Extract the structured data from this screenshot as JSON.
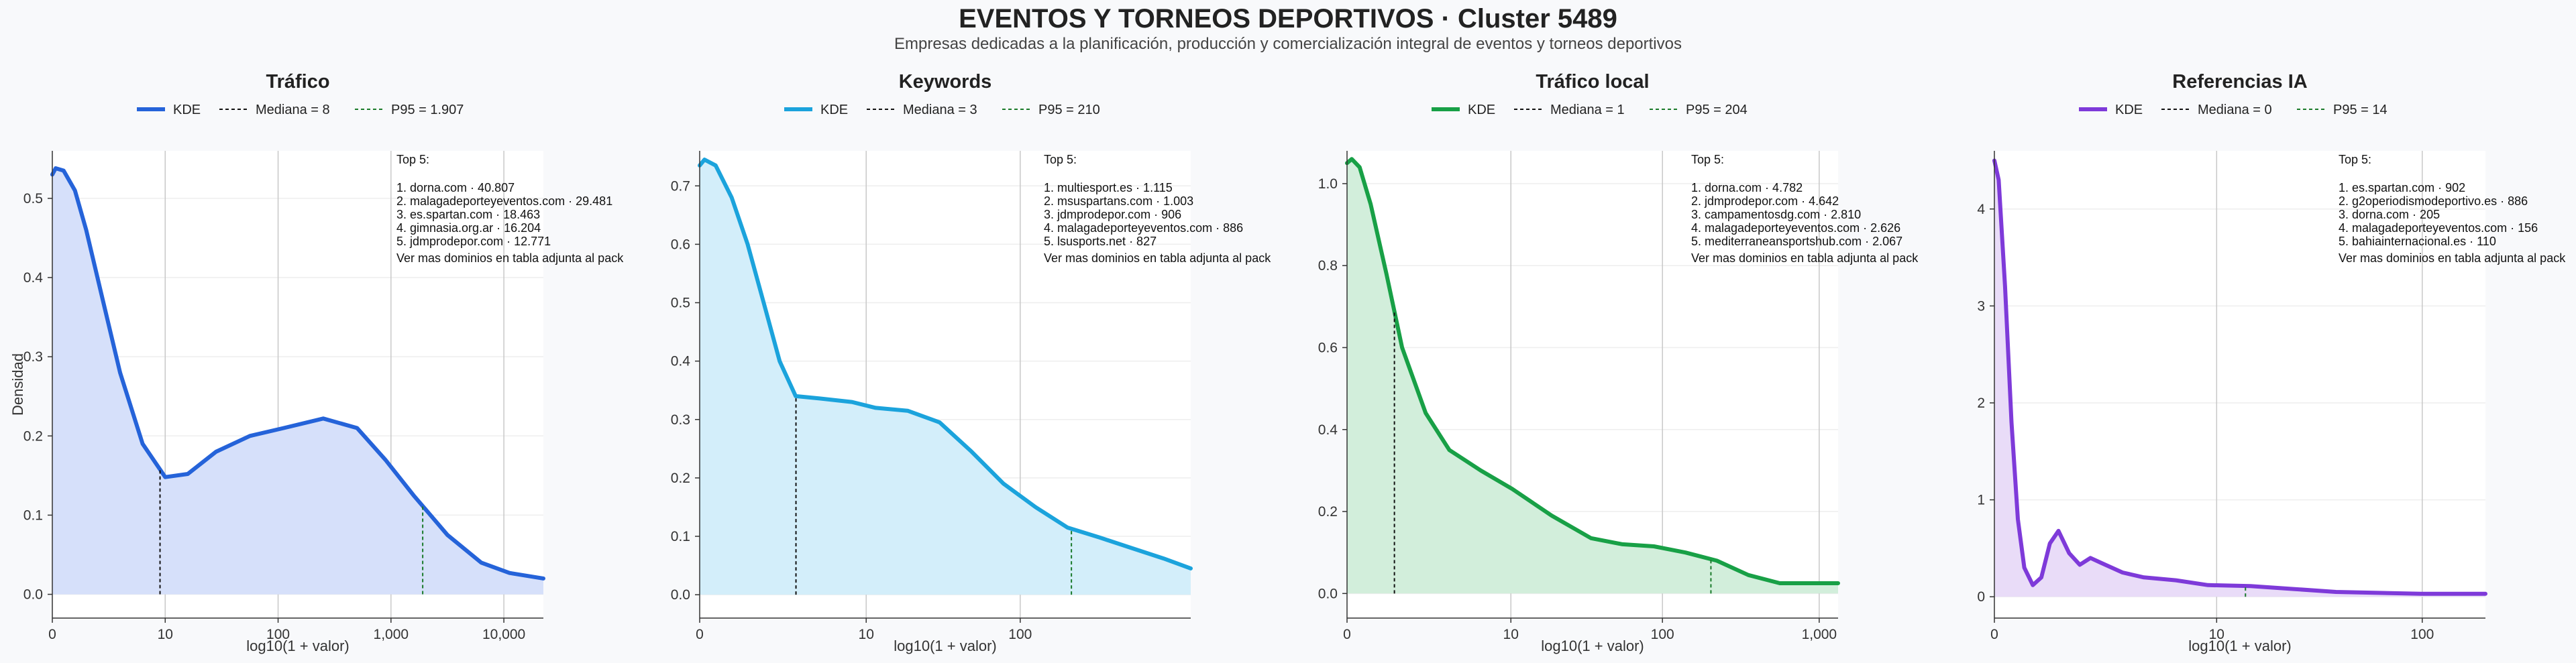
{
  "header": {
    "title": "EVENTOS Y TORNEOS DEPORTIVOS · Cluster 5489",
    "subtitle": "Empresas dedicadas a la planificación, producción y comercialización integral de eventos y torneos deportivos"
  },
  "chart_data": [
    {
      "type": "area",
      "title": "Tráfico",
      "xlabel": "log10(1 + valor)",
      "ylabel": "Densidad",
      "xscale": "log10(1+x)",
      "xlim": [
        0,
        4.35
      ],
      "ylim": [
        -0.03,
        0.56
      ],
      "xticks": [
        0,
        1,
        2,
        3,
        4
      ],
      "xtick_labels": [
        "0",
        "10",
        "100",
        "1,000",
        "10,000"
      ],
      "yticks": [
        0,
        0.1,
        0.2,
        0.3,
        0.4,
        0.5
      ],
      "ytick_labels": [
        "0.0",
        "0.1",
        "0.2",
        "0.3",
        "0.4",
        "0.5"
      ],
      "legend": [
        {
          "label": "KDE",
          "style": "solid"
        },
        {
          "label": "Mediana = 8",
          "style": "dashed"
        },
        {
          "label": "P95 = 1.907",
          "style": "dashed"
        }
      ],
      "color": "#2563d9",
      "fill": "#d6e0fa",
      "p95_color": "#1a7a2a",
      "median_x": 0.954,
      "p95_x": 3.281,
      "series": [
        {
          "x": [
            0,
            0.03,
            0.1,
            0.2,
            0.3,
            0.45,
            0.6,
            0.8,
            1.0,
            1.2,
            1.45,
            1.75,
            2.05,
            2.4,
            2.7,
            2.95,
            3.2,
            3.5,
            3.8,
            4.05,
            4.35
          ],
          "y": [
            0.53,
            0.538,
            0.535,
            0.51,
            0.46,
            0.37,
            0.28,
            0.19,
            0.148,
            0.152,
            0.18,
            0.2,
            0.21,
            0.222,
            0.21,
            0.17,
            0.125,
            0.075,
            0.04,
            0.027,
            0.02
          ]
        }
      ],
      "top5": {
        "heading": "Top 5:",
        "items": [
          "1. dorna.com · 40.807",
          "2. malagadeporteyeventos.com · 29.481",
          "3. es.spartan.com · 18.463",
          "4. gimnasia.org.ar · 16.204",
          "5. jdmprodepor.com · 12.771"
        ],
        "footer": "Ver mas dominios en tabla adjunta al pack"
      }
    },
    {
      "type": "area",
      "title": "Keywords",
      "xlabel": "log10(1 + valor)",
      "ylabel": "",
      "xscale": "log10(1+x)",
      "xlim": [
        0,
        3.07
      ],
      "ylim": [
        -0.04,
        0.76
      ],
      "xticks": [
        0,
        1.041,
        2.004
      ],
      "xtick_labels": [
        "0",
        "10",
        "100"
      ],
      "yticks": [
        0,
        0.1,
        0.2,
        0.3,
        0.4,
        0.5,
        0.6,
        0.7
      ],
      "ytick_labels": [
        "0.0",
        "0.1",
        "0.2",
        "0.3",
        "0.4",
        "0.5",
        "0.6",
        "0.7"
      ],
      "legend": [
        {
          "label": "KDE",
          "style": "solid"
        },
        {
          "label": "Mediana = 3",
          "style": "dashed"
        },
        {
          "label": "P95 = 210",
          "style": "dashed"
        }
      ],
      "color": "#1ba3dc",
      "fill": "#d3eefa",
      "p95_color": "#1a7a2a",
      "median_x": 0.602,
      "p95_x": 2.324,
      "series": [
        {
          "x": [
            0,
            0.03,
            0.1,
            0.2,
            0.3,
            0.4,
            0.5,
            0.6,
            0.75,
            0.95,
            1.1,
            1.3,
            1.5,
            1.7,
            1.9,
            2.1,
            2.3,
            2.5,
            2.7,
            2.9,
            3.07
          ],
          "y": [
            0.735,
            0.745,
            0.735,
            0.68,
            0.6,
            0.5,
            0.4,
            0.34,
            0.336,
            0.33,
            0.32,
            0.315,
            0.295,
            0.245,
            0.19,
            0.15,
            0.115,
            0.098,
            0.08,
            0.062,
            0.045
          ]
        }
      ],
      "top5": {
        "heading": "Top 5:",
        "items": [
          "1. multiesport.es · 1.115",
          "2. msuspartans.com · 1.003",
          "3. jdmprodepor.com · 906",
          "4. malagadeporteyeventos.com · 886",
          "5. lsusports.net · 827"
        ],
        "footer": "Ver mas dominios en tabla adjunta al pack"
      }
    },
    {
      "type": "area",
      "title": "Tráfico local",
      "xlabel": "log10(1 + valor)",
      "ylabel": "",
      "xscale": "log10(1+x)",
      "xlim": [
        0,
        3.12
      ],
      "ylim": [
        -0.06,
        1.08
      ],
      "xticks": [
        0,
        1.041,
        2.004,
        3.0
      ],
      "xtick_labels": [
        "0",
        "10",
        "100",
        "1,000"
      ],
      "yticks": [
        0,
        0.2,
        0.4,
        0.6,
        0.8,
        1.0
      ],
      "ytick_labels": [
        "0.0",
        "0.2",
        "0.4",
        "0.6",
        "0.8",
        "1.0"
      ],
      "legend": [
        {
          "label": "KDE",
          "style": "solid"
        },
        {
          "label": "Mediana = 1",
          "style": "dashed"
        },
        {
          "label": "P95 = 204",
          "style": "dashed"
        }
      ],
      "color": "#18a046",
      "fill": "#d2eedb",
      "p95_color": "#1a7a2a",
      "median_x": 0.301,
      "p95_x": 2.312,
      "series": [
        {
          "x": [
            0,
            0.03,
            0.08,
            0.15,
            0.25,
            0.35,
            0.5,
            0.65,
            0.85,
            1.05,
            1.3,
            1.55,
            1.75,
            1.95,
            2.15,
            2.35,
            2.55,
            2.75,
            2.95,
            3.12
          ],
          "y": [
            1.05,
            1.06,
            1.04,
            0.95,
            0.78,
            0.6,
            0.44,
            0.35,
            0.3,
            0.255,
            0.19,
            0.135,
            0.12,
            0.115,
            0.1,
            0.08,
            0.045,
            0.025,
            0.025,
            0.025
          ]
        }
      ],
      "top5": {
        "heading": "Top 5:",
        "items": [
          "1. dorna.com · 4.782",
          "2. jdmprodepor.com · 4.642",
          "3. campamentosdg.com · 2.810",
          "4. malagadeporteyeventos.com · 2.626",
          "5. mediterraneansportshub.com · 2.067"
        ],
        "footer": "Ver mas dominios en tabla adjunta al pack"
      }
    },
    {
      "type": "area",
      "title": "Referencias IA",
      "xlabel": "log10(1 + valor)",
      "ylabel": "",
      "xscale": "log10(1+x)",
      "xlim": [
        0,
        2.3
      ],
      "ylim": [
        -0.22,
        4.6
      ],
      "xticks": [
        0,
        1.041,
        2.004
      ],
      "xtick_labels": [
        "0",
        "10",
        "100"
      ],
      "yticks": [
        0,
        1,
        2,
        3,
        4
      ],
      "ytick_labels": [
        "0",
        "1",
        "2",
        "3",
        "4"
      ],
      "legend": [
        {
          "label": "KDE",
          "style": "solid"
        },
        {
          "label": "Mediana = 0",
          "style": "dashed"
        },
        {
          "label": "P95 = 14",
          "style": "dashed"
        }
      ],
      "color": "#7e3ad9",
      "fill": "#e9dcf8",
      "p95_color": "#1a7a2a",
      "median_x": 0,
      "p95_x": 1.176,
      "series": [
        {
          "x": [
            0,
            0.02,
            0.05,
            0.08,
            0.11,
            0.14,
            0.18,
            0.22,
            0.26,
            0.3,
            0.35,
            0.4,
            0.45,
            0.5,
            0.6,
            0.7,
            0.85,
            1.0,
            1.2,
            1.4,
            1.6,
            1.8,
            2.0,
            2.3
          ],
          "y": [
            4.5,
            4.3,
            3.2,
            1.8,
            0.8,
            0.3,
            0.12,
            0.2,
            0.55,
            0.68,
            0.45,
            0.33,
            0.4,
            0.35,
            0.25,
            0.2,
            0.17,
            0.12,
            0.11,
            0.08,
            0.05,
            0.04,
            0.03,
            0.03
          ]
        }
      ],
      "top5": {
        "heading": "Top 5:",
        "items": [
          "1. es.spartan.com · 902",
          "2. g2operiodismodeportivo.es · 886",
          "3. dorna.com · 205",
          "4. malagadeporteyeventos.com · 156",
          "5. bahiainternacional.es · 110"
        ],
        "footer": "Ver mas dominios en tabla adjunta al pack"
      }
    }
  ]
}
